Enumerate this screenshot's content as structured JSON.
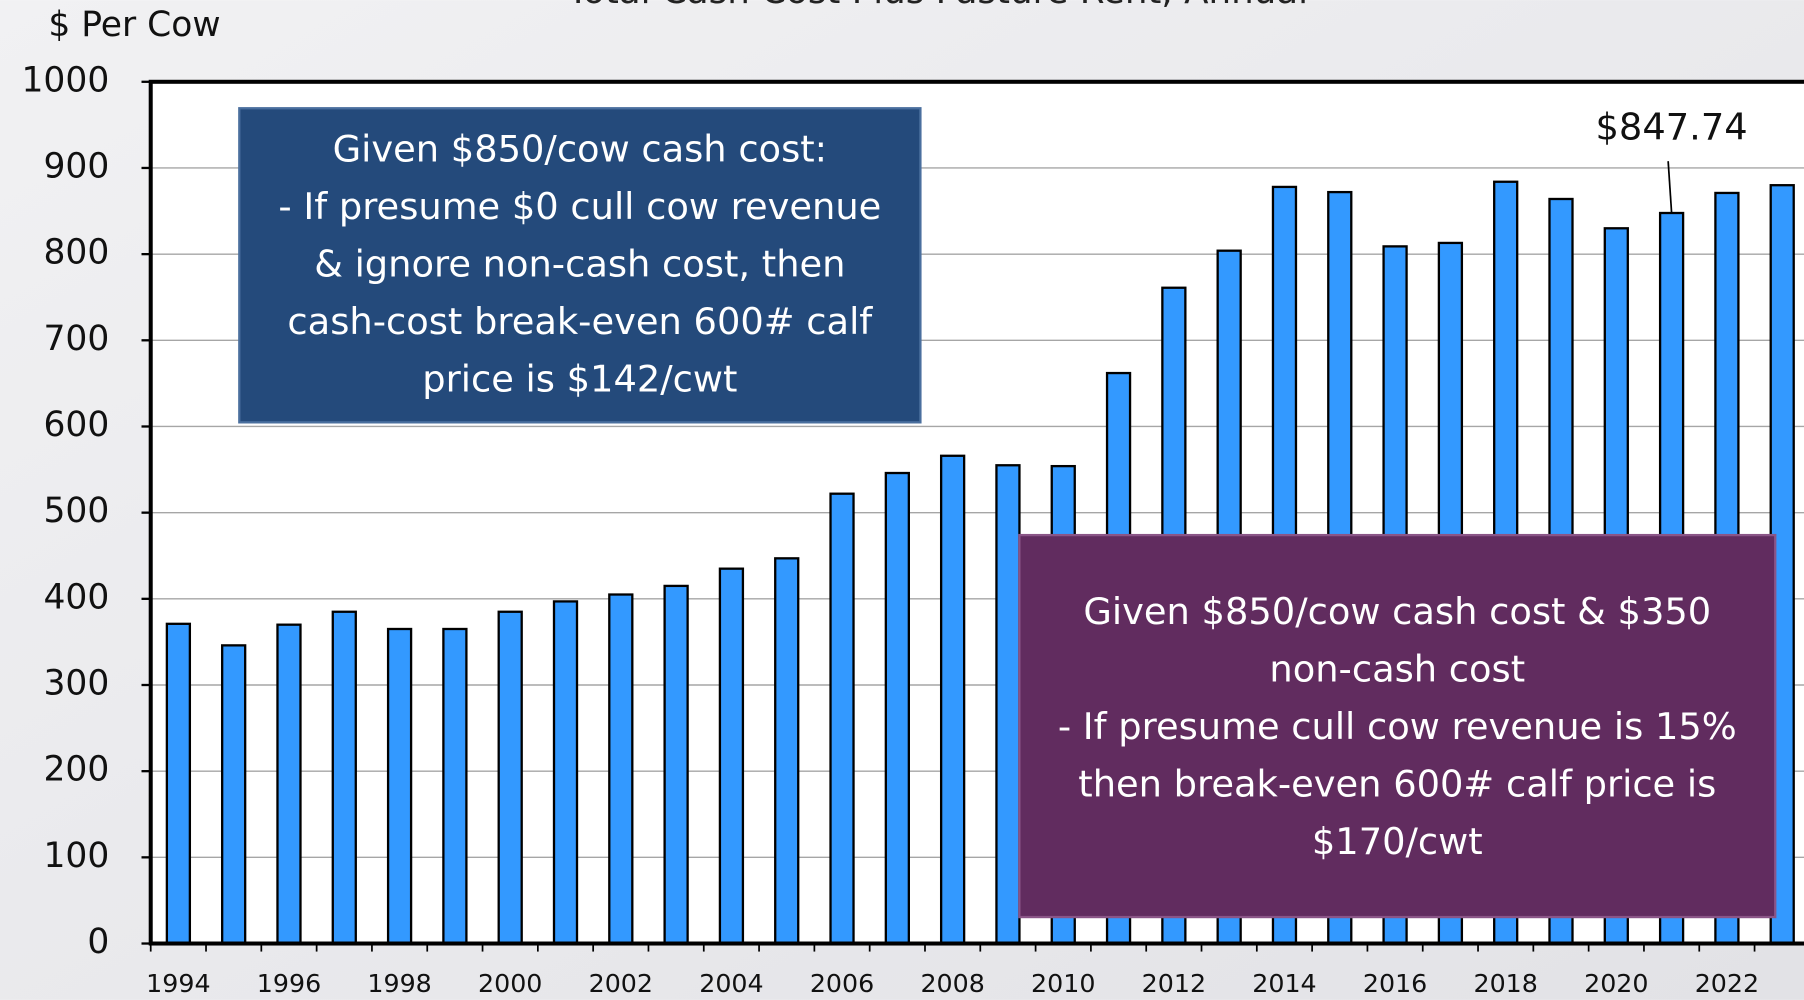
{
  "chart_data": {
    "type": "bar",
    "title": "Total Cash Cost Plus Pasture Rent, Annual",
    "y_label": "$ Per Cow",
    "categories": [
      "1994",
      null,
      "1996",
      null,
      "1998",
      null,
      "2000",
      null,
      "2002",
      null,
      "2004",
      null,
      "2006",
      null,
      "2008",
      null,
      "2010",
      null,
      "2012",
      null,
      "2014",
      null,
      "2016",
      null,
      "2018",
      null,
      "2020",
      null,
      "2022",
      null
    ],
    "values": [
      371,
      346,
      370,
      385,
      365,
      365,
      385,
      397,
      405,
      415,
      435,
      447,
      522,
      546,
      566,
      555,
      554,
      662,
      761,
      804,
      878,
      872,
      809,
      813,
      884,
      864,
      830,
      847.74,
      871,
      880
    ],
    "value_labels": [
      null,
      null,
      null,
      null,
      null,
      null,
      null,
      null,
      null,
      null,
      null,
      null,
      null,
      null,
      null,
      null,
      null,
      null,
      null,
      null,
      null,
      null,
      null,
      null,
      null,
      null,
      null,
      "$847.74",
      null,
      null
    ],
    "color": "#3399ff",
    "ylim": [
      0,
      1000
    ],
    "yticks": [
      0,
      100,
      200,
      300,
      400,
      500,
      600,
      700,
      800,
      900,
      1000
    ],
    "grid": true,
    "annotations": [
      {
        "lines": [
          "Given $850/cow cash cost:",
          "- If presume $0 cull cow revenue",
          "& ignore non-cash cost, then",
          "cash-cost break-even 600# calf",
          "price is $142/cwt"
        ]
      },
      {
        "lines": [
          "Given $850/cow cash cost & $350",
          "non-cash cost",
          "- If presume cull cow revenue is 15%",
          "then break-even 600# calf price is",
          "$170/cwt"
        ]
      }
    ]
  }
}
